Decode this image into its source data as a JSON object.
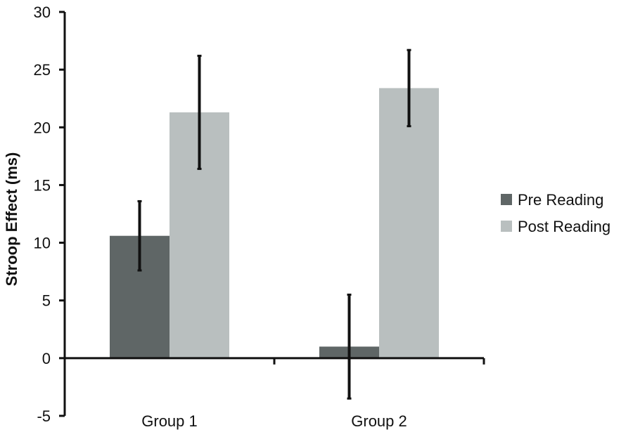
{
  "chart_data": {
    "type": "bar",
    "title": "",
    "xlabel": "",
    "ylabel": "Stroop Effect (ms)",
    "ylim": [
      -5,
      30
    ],
    "yticks": [
      "-5",
      "0",
      "5",
      "10",
      "15",
      "20",
      "25",
      "30"
    ],
    "categories": [
      "Group 1",
      "Group 2"
    ],
    "grid": false,
    "legend_position": "right",
    "series": [
      {
        "name": "Pre Reading",
        "color": "#5f6666",
        "values": [
          10.6,
          1.0
        ],
        "error": [
          3.0,
          4.5
        ]
      },
      {
        "name": "Post Reading",
        "color": "#b9bfbf",
        "values": [
          21.3,
          23.4
        ],
        "error": [
          4.9,
          3.3
        ]
      }
    ]
  }
}
